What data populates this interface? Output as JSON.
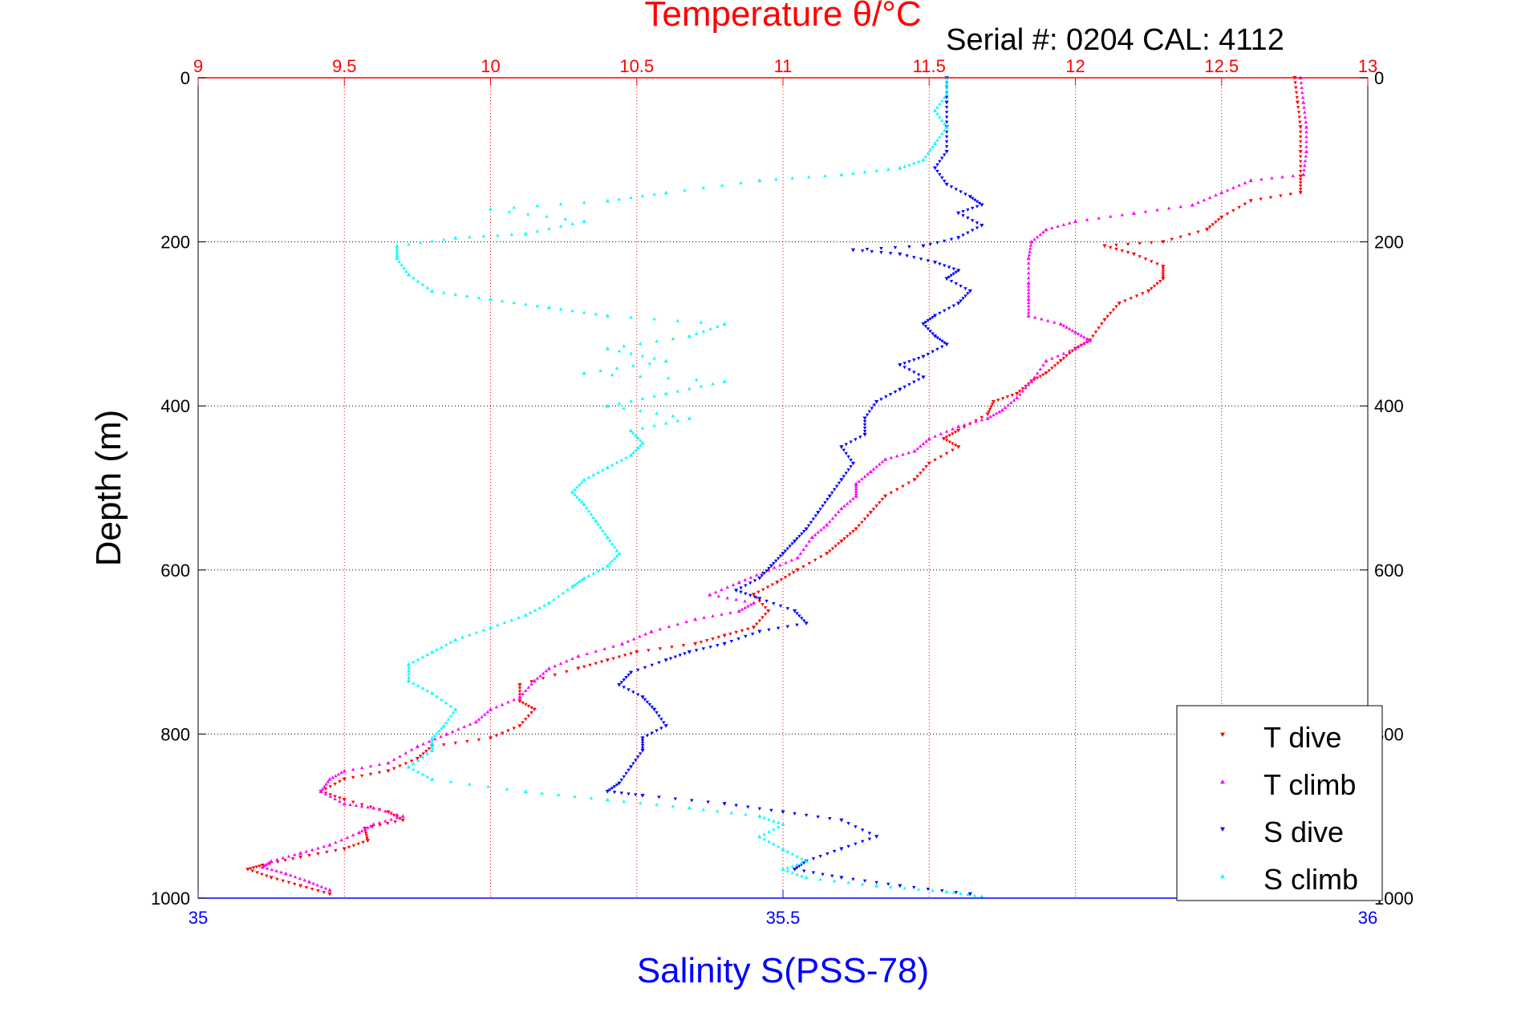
{
  "chart_data": {
    "type": "scatter",
    "title": "Temperature θ/°C",
    "subtitle": "Serial #: 0204  CAL: 4112",
    "ylabel": "Depth (m)",
    "xlabel": "Salinity S(PSS-78)",
    "ylim": [
      0,
      1000
    ],
    "y_reversed": true,
    "temperature_axis": {
      "position": "top",
      "range": [
        9,
        13
      ],
      "ticks": [
        9,
        9.5,
        10,
        10.5,
        11,
        11.5,
        12,
        12.5,
        13
      ],
      "tick_labels": [
        "9",
        "9.5",
        "10",
        "10.5",
        "11",
        "11.5",
        "12",
        "12.5",
        "13"
      ],
      "color": "#ff0000",
      "grid": true
    },
    "salinity_axis": {
      "position": "bottom",
      "range": [
        35,
        36
      ],
      "ticks": [
        35,
        35.5,
        36
      ],
      "tick_labels": [
        "35",
        "35.5",
        "36"
      ],
      "color": "#0000ff"
    },
    "y_ticks": [
      0,
      200,
      400,
      600,
      800,
      1000
    ],
    "y_tick_labels": [
      "0",
      "200",
      "400",
      "600",
      "800",
      "1000"
    ],
    "grid": true,
    "legend_position": "bottom-right",
    "series": [
      {
        "name": "T dive",
        "axis": "temperature",
        "color": "#ff0000",
        "marker": "triangle-down",
        "points": [
          [
            12.75,
            0
          ],
          [
            12.76,
            30
          ],
          [
            12.77,
            60
          ],
          [
            12.77,
            90
          ],
          [
            12.77,
            120
          ],
          [
            12.77,
            140
          ],
          [
            12.6,
            150
          ],
          [
            12.5,
            170
          ],
          [
            12.45,
            185
          ],
          [
            12.3,
            200
          ],
          [
            12.1,
            205
          ],
          [
            12.2,
            215
          ],
          [
            12.3,
            230
          ],
          [
            12.3,
            245
          ],
          [
            12.25,
            260
          ],
          [
            12.15,
            275
          ],
          [
            12.1,
            295
          ],
          [
            12.05,
            320
          ],
          [
            12.0,
            330
          ],
          [
            11.95,
            345
          ],
          [
            11.9,
            360
          ],
          [
            11.85,
            370
          ],
          [
            11.8,
            385
          ],
          [
            11.72,
            395
          ],
          [
            11.7,
            410
          ],
          [
            11.6,
            430
          ],
          [
            11.55,
            440
          ],
          [
            11.6,
            450
          ],
          [
            11.5,
            470
          ],
          [
            11.45,
            490
          ],
          [
            11.35,
            510
          ],
          [
            11.3,
            530
          ],
          [
            11.25,
            550
          ],
          [
            11.2,
            565
          ],
          [
            11.15,
            580
          ],
          [
            11.05,
            600
          ],
          [
            10.98,
            615
          ],
          [
            10.9,
            630
          ],
          [
            10.95,
            650
          ],
          [
            10.9,
            670
          ],
          [
            10.8,
            680
          ],
          [
            10.7,
            690
          ],
          [
            10.5,
            700
          ],
          [
            10.4,
            710
          ],
          [
            10.3,
            720
          ],
          [
            10.1,
            740
          ],
          [
            10.1,
            760
          ],
          [
            10.15,
            770
          ],
          [
            10.1,
            790
          ],
          [
            10.0,
            805
          ],
          [
            9.8,
            815
          ],
          [
            9.75,
            830
          ],
          [
            9.65,
            845
          ],
          [
            9.5,
            855
          ],
          [
            9.42,
            870
          ],
          [
            9.5,
            880
          ],
          [
            9.65,
            895
          ],
          [
            9.7,
            905
          ],
          [
            9.57,
            915
          ],
          [
            9.58,
            930
          ],
          [
            9.5,
            940
          ],
          [
            9.35,
            950
          ],
          [
            9.22,
            960
          ],
          [
            9.17,
            965
          ],
          [
            9.25,
            975
          ],
          [
            9.35,
            985
          ],
          [
            9.45,
            995
          ]
        ]
      },
      {
        "name": "T climb",
        "axis": "temperature",
        "color": "#ff00ff",
        "marker": "triangle-up",
        "points": [
          [
            12.77,
            0
          ],
          [
            12.78,
            30
          ],
          [
            12.79,
            60
          ],
          [
            12.79,
            90
          ],
          [
            12.78,
            118
          ],
          [
            12.6,
            125
          ],
          [
            12.5,
            140
          ],
          [
            12.4,
            155
          ],
          [
            12.2,
            165
          ],
          [
            12.0,
            175
          ],
          [
            11.9,
            185
          ],
          [
            11.85,
            200
          ],
          [
            11.84,
            220
          ],
          [
            11.84,
            250
          ],
          [
            11.84,
            270
          ],
          [
            11.84,
            290
          ],
          [
            11.95,
            300
          ],
          [
            12.0,
            310
          ],
          [
            12.05,
            320
          ],
          [
            12.0,
            330
          ],
          [
            11.9,
            345
          ],
          [
            11.85,
            370
          ],
          [
            11.8,
            390
          ],
          [
            11.75,
            405
          ],
          [
            11.7,
            415
          ],
          [
            11.6,
            425
          ],
          [
            11.5,
            440
          ],
          [
            11.45,
            455
          ],
          [
            11.35,
            465
          ],
          [
            11.3,
            480
          ],
          [
            11.25,
            495
          ],
          [
            11.25,
            510
          ],
          [
            11.2,
            525
          ],
          [
            11.15,
            545
          ],
          [
            11.1,
            560
          ],
          [
            11.05,
            585
          ],
          [
            10.95,
            600
          ],
          [
            10.85,
            615
          ],
          [
            10.75,
            630
          ],
          [
            10.9,
            640
          ],
          [
            10.85,
            650
          ],
          [
            10.7,
            660
          ],
          [
            10.55,
            675
          ],
          [
            10.45,
            690
          ],
          [
            10.3,
            705
          ],
          [
            10.2,
            720
          ],
          [
            10.15,
            735
          ],
          [
            10.1,
            755
          ],
          [
            10.0,
            770
          ],
          [
            9.95,
            785
          ],
          [
            9.85,
            800
          ],
          [
            9.75,
            815
          ],
          [
            9.65,
            835
          ],
          [
            9.5,
            845
          ],
          [
            9.45,
            855
          ],
          [
            9.42,
            870
          ],
          [
            9.5,
            885
          ],
          [
            9.6,
            890
          ],
          [
            9.7,
            900
          ],
          [
            9.6,
            910
          ],
          [
            9.55,
            920
          ],
          [
            9.45,
            935
          ],
          [
            9.35,
            945
          ],
          [
            9.25,
            955
          ],
          [
            9.22,
            962
          ],
          [
            9.3,
            970
          ],
          [
            9.38,
            980
          ],
          [
            9.45,
            990
          ]
        ]
      },
      {
        "name": "S dive",
        "axis": "salinity",
        "color": "#0000ff",
        "marker": "triangle-down",
        "points": [
          [
            35.64,
            0
          ],
          [
            35.64,
            30
          ],
          [
            35.64,
            60
          ],
          [
            35.64,
            90
          ],
          [
            35.63,
            110
          ],
          [
            35.64,
            130
          ],
          [
            35.66,
            145
          ],
          [
            35.67,
            155
          ],
          [
            35.65,
            165
          ],
          [
            35.67,
            180
          ],
          [
            35.65,
            195
          ],
          [
            35.62,
            205
          ],
          [
            35.56,
            210
          ],
          [
            35.6,
            215
          ],
          [
            35.63,
            225
          ],
          [
            35.65,
            235
          ],
          [
            35.64,
            245
          ],
          [
            35.66,
            260
          ],
          [
            35.65,
            275
          ],
          [
            35.63,
            290
          ],
          [
            35.62,
            300
          ],
          [
            35.63,
            315
          ],
          [
            35.64,
            325
          ],
          [
            35.62,
            340
          ],
          [
            35.6,
            350
          ],
          [
            35.62,
            365
          ],
          [
            35.6,
            380
          ],
          [
            35.58,
            395
          ],
          [
            35.57,
            415
          ],
          [
            35.57,
            435
          ],
          [
            35.55,
            450
          ],
          [
            35.56,
            470
          ],
          [
            35.55,
            490
          ],
          [
            35.54,
            510
          ],
          [
            35.53,
            530
          ],
          [
            35.52,
            550
          ],
          [
            35.51,
            565
          ],
          [
            35.5,
            580
          ],
          [
            35.49,
            595
          ],
          [
            35.48,
            610
          ],
          [
            35.46,
            625
          ],
          [
            35.48,
            635
          ],
          [
            35.51,
            650
          ],
          [
            35.52,
            665
          ],
          [
            35.48,
            675
          ],
          [
            35.45,
            690
          ],
          [
            35.42,
            700
          ],
          [
            35.4,
            710
          ],
          [
            35.37,
            725
          ],
          [
            35.36,
            740
          ],
          [
            35.38,
            755
          ],
          [
            35.39,
            770
          ],
          [
            35.4,
            790
          ],
          [
            35.38,
            805
          ],
          [
            35.38,
            820
          ],
          [
            35.37,
            840
          ],
          [
            35.36,
            860
          ],
          [
            35.35,
            870
          ],
          [
            35.38,
            875
          ],
          [
            35.45,
            885
          ],
          [
            35.5,
            895
          ],
          [
            35.55,
            905
          ],
          [
            35.58,
            925
          ],
          [
            35.55,
            940
          ],
          [
            35.52,
            955
          ],
          [
            35.51,
            965
          ],
          [
            35.55,
            975
          ],
          [
            35.6,
            985
          ],
          [
            35.66,
            995
          ]
        ]
      },
      {
        "name": "S climb",
        "axis": "salinity",
        "color": "#00ffff",
        "marker": "triangle-up",
        "points": [
          [
            35.64,
            0
          ],
          [
            35.64,
            20
          ],
          [
            35.63,
            40
          ],
          [
            35.64,
            60
          ],
          [
            35.63,
            80
          ],
          [
            35.62,
            100
          ],
          [
            35.6,
            110
          ],
          [
            35.55,
            118
          ],
          [
            35.48,
            125
          ],
          [
            35.4,
            140
          ],
          [
            35.35,
            150
          ],
          [
            35.25,
            160
          ],
          [
            35.33,
            175
          ],
          [
            35.28,
            190
          ],
          [
            35.22,
            195
          ],
          [
            35.17,
            205
          ],
          [
            35.17,
            220
          ],
          [
            35.18,
            240
          ],
          [
            35.2,
            260
          ],
          [
            35.25,
            270
          ],
          [
            35.3,
            280
          ],
          [
            35.35,
            290
          ],
          [
            35.45,
            300
          ],
          [
            35.42,
            315
          ],
          [
            35.35,
            330
          ],
          [
            35.4,
            345
          ],
          [
            35.33,
            360
          ],
          [
            35.45,
            370
          ],
          [
            35.4,
            385
          ],
          [
            35.35,
            400
          ],
          [
            35.42,
            415
          ],
          [
            35.37,
            430
          ],
          [
            35.38,
            445
          ],
          [
            35.37,
            460
          ],
          [
            35.35,
            475
          ],
          [
            35.33,
            490
          ],
          [
            35.32,
            505
          ],
          [
            35.33,
            520
          ],
          [
            35.34,
            540
          ],
          [
            35.35,
            560
          ],
          [
            35.36,
            580
          ],
          [
            35.35,
            595
          ],
          [
            35.33,
            610
          ],
          [
            35.32,
            620
          ],
          [
            35.3,
            640
          ],
          [
            35.28,
            655
          ],
          [
            35.25,
            670
          ],
          [
            35.22,
            685
          ],
          [
            35.2,
            700
          ],
          [
            35.18,
            715
          ],
          [
            35.18,
            735
          ],
          [
            35.2,
            750
          ],
          [
            35.22,
            770
          ],
          [
            35.21,
            790
          ],
          [
            35.2,
            805
          ],
          [
            35.2,
            820
          ],
          [
            35.18,
            840
          ],
          [
            35.2,
            855
          ],
          [
            35.28,
            870
          ],
          [
            35.35,
            880
          ],
          [
            35.42,
            890
          ],
          [
            35.48,
            900
          ],
          [
            35.5,
            910
          ],
          [
            35.48,
            925
          ],
          [
            35.5,
            940
          ],
          [
            35.52,
            955
          ],
          [
            35.5,
            965
          ],
          [
            35.52,
            975
          ],
          [
            35.58,
            985
          ],
          [
            35.64,
            992
          ],
          [
            35.67,
            998
          ]
        ]
      }
    ]
  }
}
